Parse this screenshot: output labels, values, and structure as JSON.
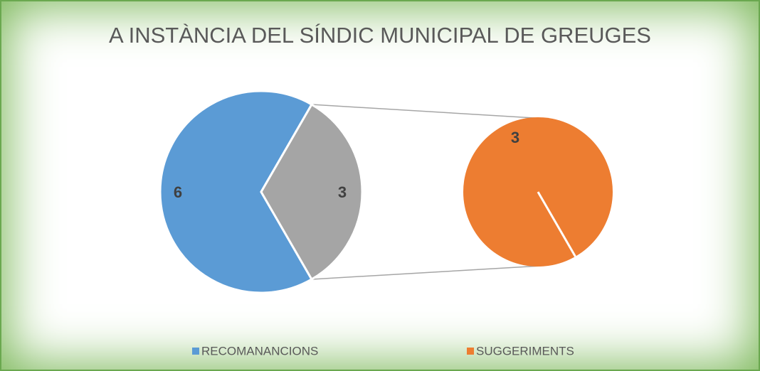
{
  "chart_data": {
    "type": "pie-of-pie",
    "title": "A INSTÀNCIA DEL SÍNDIC MUNICIPAL DE GREUGES",
    "categories": [
      "RECOMANANCIONS",
      "SUGGERIMENTS"
    ],
    "values": [
      6,
      3
    ],
    "colors": [
      "#5b9bd5",
      "#ed7d31"
    ],
    "other": {
      "value": 3,
      "color": "#a5a5a5"
    },
    "legend": "bottom"
  }
}
